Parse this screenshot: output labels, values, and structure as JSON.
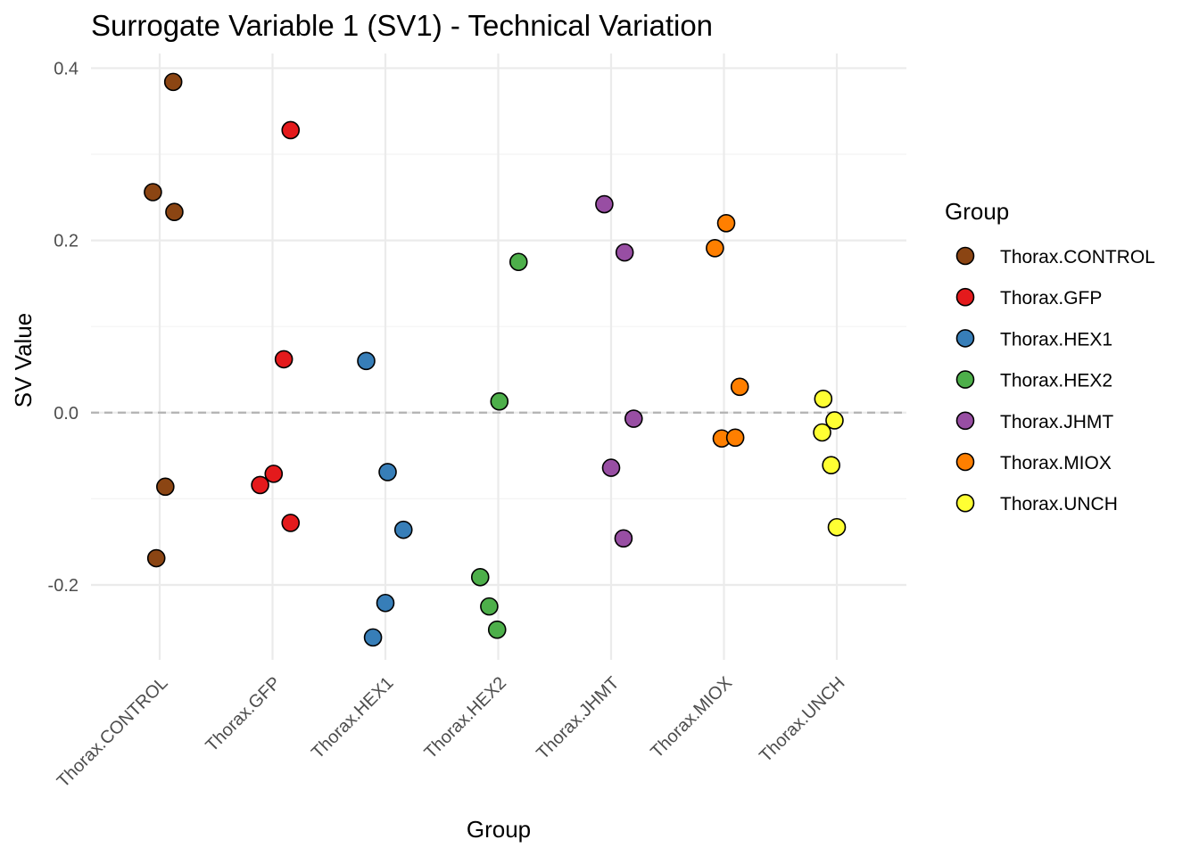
{
  "chart_data": {
    "type": "scatter",
    "title": "Surrogate Variable 1 (SV1) - Technical Variation",
    "xlabel": "Group",
    "ylabel": "SV Value",
    "categories": [
      "Thorax.CONTROL",
      "Thorax.GFP",
      "Thorax.HEX1",
      "Thorax.HEX2",
      "Thorax.JHMT",
      "Thorax.MIOX",
      "Thorax.UNCH"
    ],
    "ylim": [
      -0.287,
      0.417
    ],
    "yticks": [
      -0.2,
      0.0,
      0.2,
      0.4
    ],
    "ytick_labels": [
      "-0.2",
      "0.0",
      "0.2",
      "0.4"
    ],
    "reference_line": {
      "y": 0,
      "style": "dashed"
    },
    "legend": {
      "title": "Group",
      "position": "right"
    },
    "series": [
      {
        "name": "Thorax.CONTROL",
        "color": "#8B4513",
        "points": [
          {
            "jitter": 0.12,
            "y": 0.384
          },
          {
            "jitter": -0.06,
            "y": 0.256
          },
          {
            "jitter": 0.13,
            "y": 0.233
          },
          {
            "jitter": 0.05,
            "y": -0.086
          },
          {
            "jitter": -0.03,
            "y": -0.169
          }
        ]
      },
      {
        "name": "Thorax.GFP",
        "color": "#E41A1C",
        "points": [
          {
            "jitter": 0.16,
            "y": 0.328
          },
          {
            "jitter": 0.1,
            "y": 0.062
          },
          {
            "jitter": 0.01,
            "y": -0.071
          },
          {
            "jitter": -0.11,
            "y": -0.084
          },
          {
            "jitter": 0.16,
            "y": -0.128
          }
        ]
      },
      {
        "name": "Thorax.HEX1",
        "color": "#377EB8",
        "points": [
          {
            "jitter": -0.17,
            "y": 0.06
          },
          {
            "jitter": 0.02,
            "y": -0.069
          },
          {
            "jitter": 0.16,
            "y": -0.136
          },
          {
            "jitter": 0.0,
            "y": -0.221
          },
          {
            "jitter": -0.11,
            "y": -0.261
          }
        ]
      },
      {
        "name": "Thorax.HEX2",
        "color": "#4DAF4A",
        "points": [
          {
            "jitter": 0.18,
            "y": 0.175
          },
          {
            "jitter": 0.01,
            "y": 0.013
          },
          {
            "jitter": -0.16,
            "y": -0.191
          },
          {
            "jitter": -0.08,
            "y": -0.225
          },
          {
            "jitter": -0.01,
            "y": -0.252
          }
        ]
      },
      {
        "name": "Thorax.JHMT",
        "color": "#984EA3",
        "points": [
          {
            "jitter": -0.06,
            "y": 0.242
          },
          {
            "jitter": 0.12,
            "y": 0.186
          },
          {
            "jitter": 0.2,
            "y": -0.007
          },
          {
            "jitter": 0.0,
            "y": -0.064
          },
          {
            "jitter": 0.11,
            "y": -0.146
          }
        ]
      },
      {
        "name": "Thorax.MIOX",
        "color": "#FF7F00",
        "points": [
          {
            "jitter": 0.02,
            "y": 0.22
          },
          {
            "jitter": -0.08,
            "y": 0.191
          },
          {
            "jitter": 0.14,
            "y": 0.03
          },
          {
            "jitter": -0.02,
            "y": -0.03
          },
          {
            "jitter": 0.1,
            "y": -0.029
          }
        ]
      },
      {
        "name": "Thorax.UNCH",
        "color": "#FFFF33",
        "points": [
          {
            "jitter": -0.12,
            "y": 0.016
          },
          {
            "jitter": -0.02,
            "y": -0.009
          },
          {
            "jitter": -0.13,
            "y": -0.023
          },
          {
            "jitter": -0.05,
            "y": -0.061
          },
          {
            "jitter": 0.0,
            "y": -0.133
          }
        ]
      }
    ]
  }
}
